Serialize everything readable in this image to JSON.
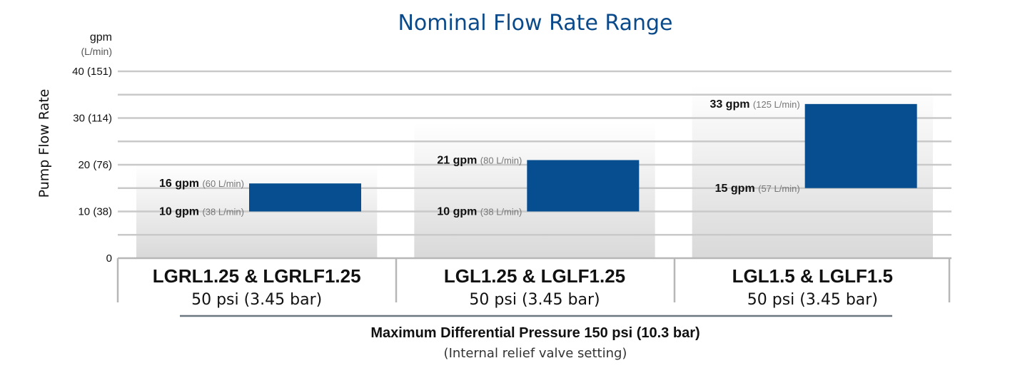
{
  "chart_data": {
    "type": "bar",
    "title": "Nominal Flow Rate Range",
    "ylabel": "Pump Flow Rate",
    "unit_primary": "gpm",
    "unit_secondary": "(L/min)",
    "ylim": [
      0,
      40
    ],
    "yticks": [
      {
        "value": 0,
        "label": "0"
      },
      {
        "value": 10,
        "label": "10 (38)"
      },
      {
        "value": 20,
        "label": "20 (76)"
      },
      {
        "value": 30,
        "label": "30 (114)"
      },
      {
        "value": 40,
        "label": "40 (151)"
      }
    ],
    "categories": [
      {
        "name": "LGRL1.25 & LGRLF1.25",
        "pressure": "50 psi (3.45 bar)",
        "bg_max": 20,
        "low": 10,
        "high": 16,
        "low_label": "10 gpm",
        "low_sub": "(38 L/min)",
        "high_label": "16 gpm",
        "high_sub": "(60 L/min)"
      },
      {
        "name": "LGL1.25 & LGLF1.25",
        "pressure": "50 psi (3.45 bar)",
        "bg_max": 29,
        "low": 10,
        "high": 21,
        "low_label": "10 gpm",
        "low_sub": "(38 L/min)",
        "high_label": "21 gpm",
        "high_sub": "(80 L/min)"
      },
      {
        "name": "LGL1.5 & LGLF1.5",
        "pressure": "50 psi (3.45 bar)",
        "bg_max": 37,
        "low": 15,
        "high": 33,
        "low_label": "15 gpm",
        "low_sub": "(57 L/min)",
        "high_label": "33 gpm",
        "high_sub": "(125 L/min)"
      }
    ],
    "footer": "Maximum Differential Pressure 150 psi (10.3 bar)",
    "footer_sub": "(Internal relief valve setting)",
    "bar_color": "#064e8f",
    "title_color": "#0b4a8a"
  }
}
